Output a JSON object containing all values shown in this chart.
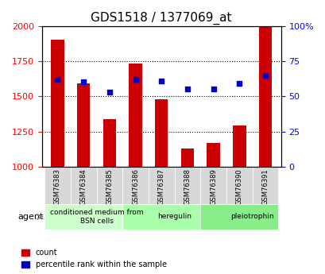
{
  "title": "GDS1518 / 1377069_at",
  "samples": [
    "GSM76383",
    "GSM76384",
    "GSM76385",
    "GSM76386",
    "GSM76387",
    "GSM76388",
    "GSM76389",
    "GSM76390",
    "GSM76391"
  ],
  "counts": [
    1900,
    1590,
    1340,
    1730,
    1480,
    1130,
    1170,
    1290,
    2000
  ],
  "percentiles": [
    62,
    60,
    53,
    62,
    61,
    55,
    55,
    59,
    65
  ],
  "ylim_left": [
    1000,
    2000
  ],
  "ylim_right": [
    0,
    100
  ],
  "yticks_left": [
    1000,
    1250,
    1500,
    1750,
    2000
  ],
  "yticks_right": [
    0,
    25,
    50,
    75,
    100
  ],
  "bar_color": "#cc0000",
  "dot_color": "#0000cc",
  "bar_width": 0.5,
  "groups": [
    {
      "label": "conditioned medium from\nBSN cells",
      "start": 0,
      "end": 3,
      "color": "#ccffcc"
    },
    {
      "label": "heregulin",
      "start": 3,
      "end": 6,
      "color": "#aaffaa"
    },
    {
      "label": "pleiotrophin",
      "start": 6,
      "end": 9,
      "color": "#88ee88"
    }
  ],
  "agent_label": "agent",
  "legend_count_label": "count",
  "legend_pct_label": "percentile rank within the sample",
  "grid_color": "#000000",
  "background_plot": "#ffffff",
  "background_tick_area": "#dddddd"
}
